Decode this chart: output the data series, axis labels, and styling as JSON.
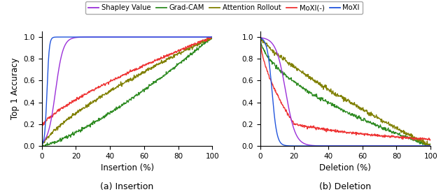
{
  "methods": [
    "Shapley Value",
    "Grad-CAM",
    "Attention Rollout",
    "MoXI(-)",
    "MoXI"
  ],
  "colors": {
    "Shapley Value": "#9B30D9",
    "Grad-CAM": "#2E8B22",
    "Attention Rollout": "#808000",
    "MoXI(-)": "#EE3333",
    "MoXI": "#2255DD"
  },
  "subplot_labels": [
    "(a) Insertion",
    "(b) Deletion"
  ],
  "xlabels": [
    "Insertion (%)",
    "Deletion (%)"
  ],
  "ylabel": "Top 1 Accuracy",
  "xlim": [
    0,
    100
  ],
  "ylim": [
    0,
    1.05
  ],
  "yticks": [
    0.0,
    0.2,
    0.4,
    0.6,
    0.8,
    1.0
  ],
  "xticks": [
    0,
    20,
    40,
    60,
    80,
    100
  ]
}
